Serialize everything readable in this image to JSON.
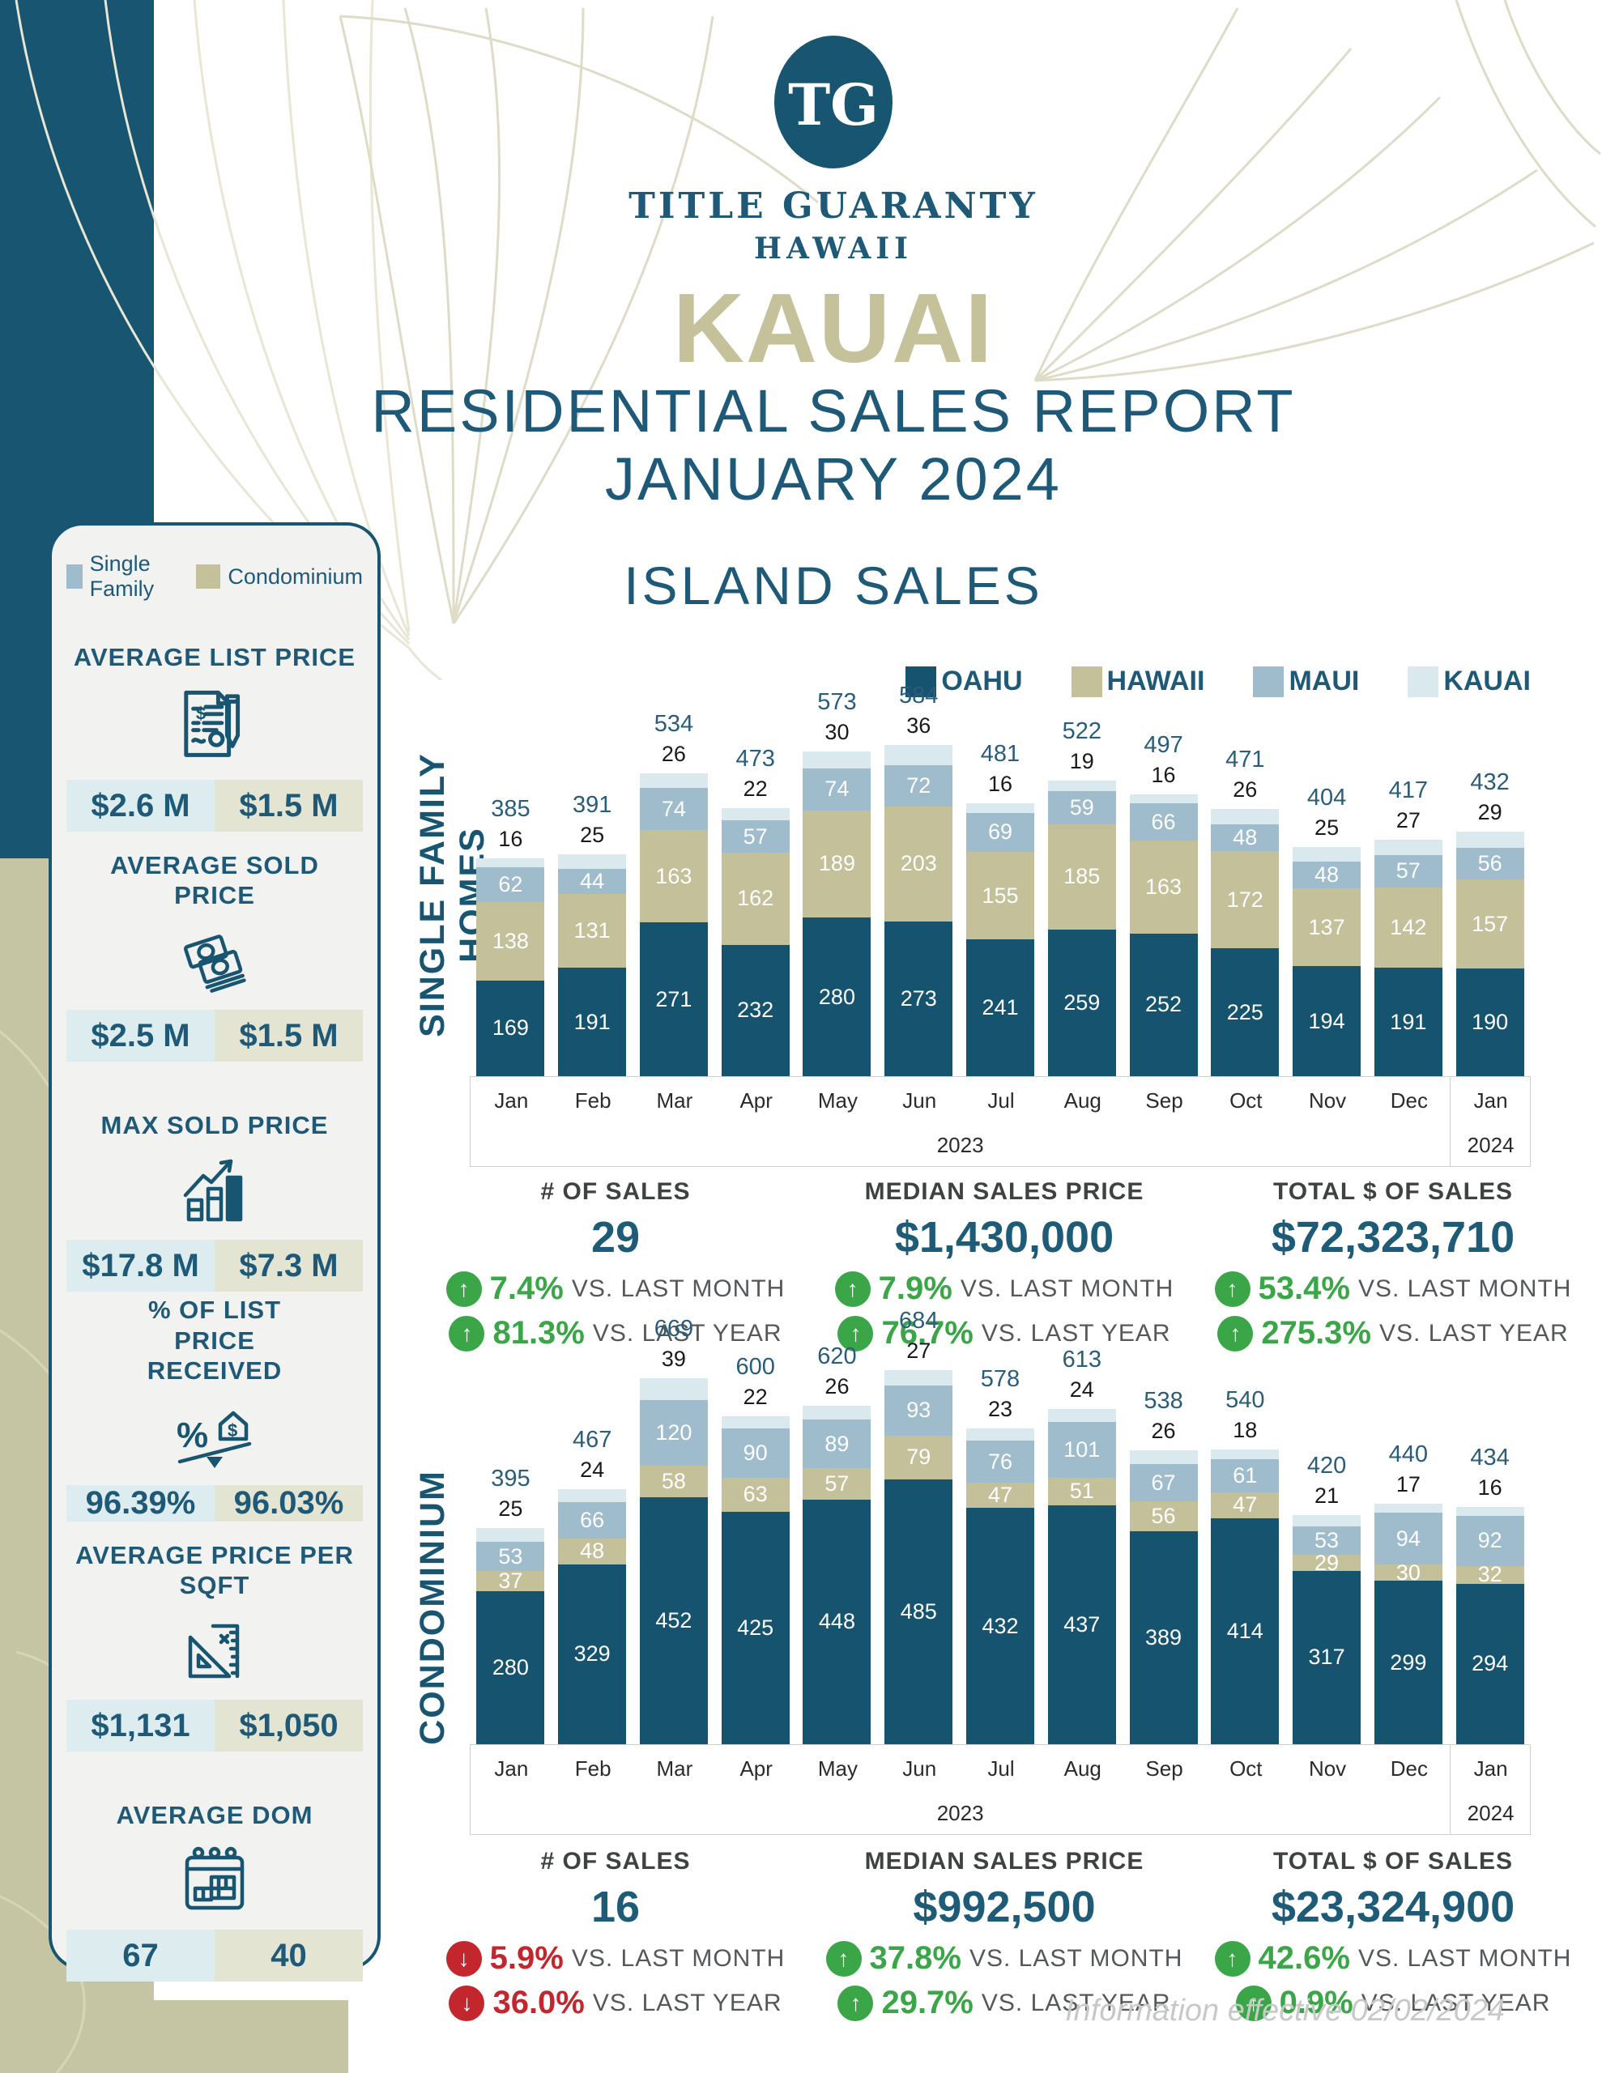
{
  "brand": {
    "logo_monogram": "TG",
    "name_line1": "TITLE GUARANTY",
    "name_line2": "HAWAII"
  },
  "header": {
    "island": "KAUAI",
    "report_line1": "RESIDENTIAL SALES REPORT",
    "report_line2": "JANUARY 2024",
    "section_title": "ISLAND SALES"
  },
  "panel": {
    "legend": [
      {
        "label": "Single Family",
        "color": "#9fbccd"
      },
      {
        "label": "Condominium",
        "color": "#c3c09a"
      }
    ],
    "sections": [
      {
        "title": "AVERAGE LIST PRICE",
        "icon": "document-pen-icon",
        "single_family": "$2.6 M",
        "condominium": "$1.5 M"
      },
      {
        "title": "AVERAGE SOLD PRICE",
        "icon": "money-bills-icon",
        "single_family": "$2.5 M",
        "condominium": "$1.5 M"
      },
      {
        "title": "MAX SOLD PRICE",
        "icon": "bar-chart-growth-icon",
        "single_family": "$17.8 M",
        "condominium": "$7.3 M"
      },
      {
        "title": "% OF LIST PRICE RECEIVED",
        "icon": "percent-house-balance-icon",
        "single_family": "96.39%",
        "condominium": "96.03%"
      },
      {
        "title": "AVERAGE PRICE PER SQFT",
        "icon": "ruler-square-icon",
        "single_family": "$1,131",
        "condominium": "$1,050"
      },
      {
        "title": "AVERAGE DOM",
        "icon": "calendar-icon",
        "single_family": "67",
        "condominium": "40"
      }
    ]
  },
  "chart_data": [
    {
      "type": "bar",
      "stacked": true,
      "title": "SINGLE FAMILY HOMES",
      "categories": [
        "Jan",
        "Feb",
        "Mar",
        "Apr",
        "May",
        "Jun",
        "Jul",
        "Aug",
        "Sep",
        "Oct",
        "Nov",
        "Dec",
        "Jan"
      ],
      "year_labels": [
        "2023",
        "2024"
      ],
      "legend_position": "top-right",
      "series": [
        {
          "name": "OAHU",
          "color": "#15536f",
          "values": [
            169,
            191,
            271,
            232,
            280,
            273,
            241,
            259,
            252,
            225,
            194,
            191,
            190
          ]
        },
        {
          "name": "HAWAII",
          "color": "#c3c09a",
          "values": [
            138,
            131,
            163,
            162,
            189,
            203,
            155,
            185,
            163,
            172,
            137,
            142,
            157
          ]
        },
        {
          "name": "MAUI",
          "color": "#9fbccd",
          "values": [
            62,
            44,
            74,
            57,
            74,
            72,
            69,
            59,
            66,
            48,
            48,
            57,
            56
          ]
        },
        {
          "name": "KAUAI",
          "color": "#d9e9ee",
          "values": [
            16,
            25,
            26,
            22,
            30,
            36,
            16,
            19,
            16,
            26,
            25,
            27,
            29
          ]
        }
      ],
      "totals": [
        385,
        391,
        534,
        473,
        573,
        584,
        481,
        522,
        497,
        471,
        404,
        417,
        432
      ],
      "stats": [
        {
          "label": "# OF SALES",
          "value": "29",
          "trends": [
            {
              "dir": "up",
              "pct": "7.4%",
              "caption": "VS. LAST MONTH"
            },
            {
              "dir": "up",
              "pct": "81.3%",
              "caption": "VS. LAST YEAR"
            }
          ]
        },
        {
          "label": "MEDIAN SALES PRICE",
          "value": "$1,430,000",
          "trends": [
            {
              "dir": "up",
              "pct": "7.9%",
              "caption": "VS. LAST MONTH"
            },
            {
              "dir": "up",
              "pct": "76.7%",
              "caption": "VS. LAST YEAR"
            }
          ]
        },
        {
          "label": "TOTAL $ OF SALES",
          "value": "$72,323,710",
          "trends": [
            {
              "dir": "up",
              "pct": "53.4%",
              "caption": "VS. LAST MONTH"
            },
            {
              "dir": "up",
              "pct": "275.3%",
              "caption": "VS. LAST YEAR"
            }
          ]
        }
      ]
    },
    {
      "type": "bar",
      "stacked": true,
      "title": "CONDOMINIUM",
      "categories": [
        "Jan",
        "Feb",
        "Mar",
        "Apr",
        "May",
        "Jun",
        "Jul",
        "Aug",
        "Sep",
        "Oct",
        "Nov",
        "Dec",
        "Jan"
      ],
      "year_labels": [
        "2023",
        "2024"
      ],
      "series": [
        {
          "name": "OAHU",
          "color": "#15536f",
          "values": [
            280,
            329,
            452,
            425,
            448,
            485,
            432,
            437,
            389,
            414,
            317,
            299,
            294
          ]
        },
        {
          "name": "HAWAII",
          "color": "#c3c09a",
          "values": [
            37,
            48,
            58,
            63,
            57,
            79,
            47,
            51,
            56,
            47,
            29,
            30,
            32
          ]
        },
        {
          "name": "MAUI",
          "color": "#9fbccd",
          "values": [
            53,
            66,
            120,
            90,
            89,
            93,
            76,
            101,
            67,
            61,
            53,
            94,
            92
          ]
        },
        {
          "name": "KAUAI",
          "color": "#d9e9ee",
          "values": [
            25,
            24,
            39,
            22,
            26,
            27,
            23,
            24,
            26,
            18,
            21,
            17,
            16
          ]
        }
      ],
      "totals": [
        395,
        467,
        669,
        600,
        620,
        684,
        578,
        613,
        538,
        540,
        420,
        440,
        434
      ],
      "stats": [
        {
          "label": "# OF SALES",
          "value": "16",
          "trends": [
            {
              "dir": "down",
              "pct": "5.9%",
              "caption": "VS. LAST MONTH"
            },
            {
              "dir": "down",
              "pct": "36.0%",
              "caption": "VS. LAST YEAR"
            }
          ]
        },
        {
          "label": "MEDIAN SALES PRICE",
          "value": "$992,500",
          "trends": [
            {
              "dir": "up",
              "pct": "37.8%",
              "caption": "VS. LAST MONTH"
            },
            {
              "dir": "up",
              "pct": "29.7%",
              "caption": "VS. LAST YEAR"
            }
          ]
        },
        {
          "label": "TOTAL $ OF SALES",
          "value": "$23,324,900",
          "trends": [
            {
              "dir": "up",
              "pct": "42.6%",
              "caption": "VS. LAST MONTH"
            },
            {
              "dir": "up",
              "pct": "0.9%",
              "caption": "VS. LAST YEAR"
            }
          ]
        }
      ]
    }
  ],
  "footer": {
    "note": "Information effective 02/02/2024"
  }
}
